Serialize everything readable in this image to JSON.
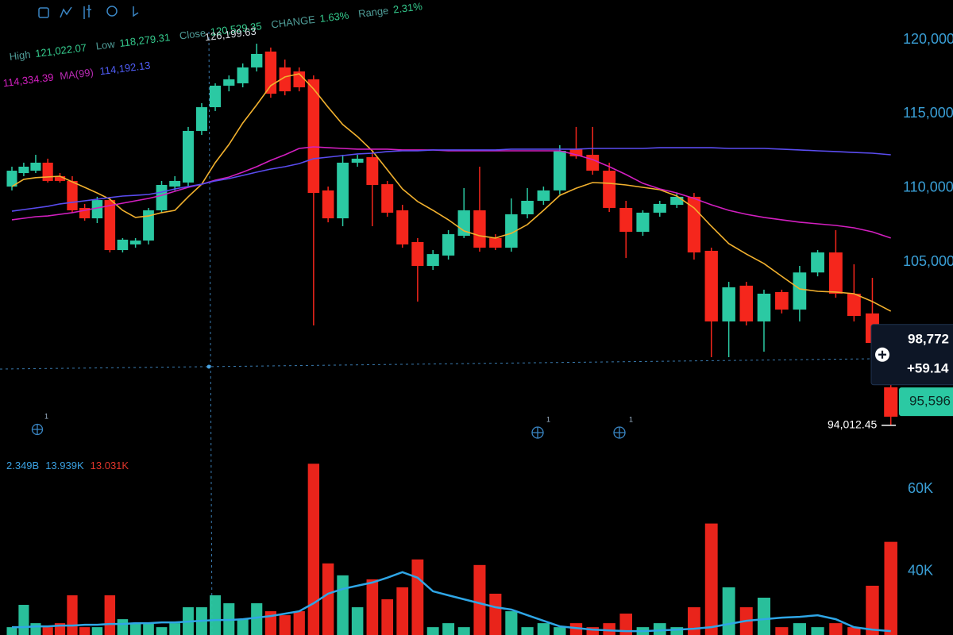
{
  "chart_data": {
    "type": "candlestick",
    "ohlc_legend": [
      {
        "label": "High",
        "value": "121,022.07"
      },
      {
        "label": "Low",
        "value": "118,279.31"
      },
      {
        "label": "Close",
        "value": "120,529.35"
      },
      {
        "label": "CHANGE",
        "value": "1.63%"
      },
      {
        "label": "Range",
        "value": "2.31%"
      }
    ],
    "ma_legend": [
      "114,334.39",
      "MA(99)",
      "114,192.13"
    ],
    "volume_legend": [
      "2.349B",
      "13.939K",
      "13.031K"
    ],
    "high_label": "126,199.63",
    "last_price": {
      "value": 98772,
      "label": "98,772"
    },
    "change_label": "+59.14",
    "mark_price": {
      "value": 95596,
      "label": "95,596"
    },
    "low_price": {
      "value": 94012.45,
      "label": "94,012.45"
    },
    "events": [
      1,
      1,
      1
    ],
    "up_color": "#2bc9a3",
    "down_color": "#f5261c",
    "ylim": [
      92715,
      122675
    ],
    "yticks": [
      {
        "value": 120000,
        "label": "120,000"
      },
      {
        "value": 115000,
        "label": "115,000"
      },
      {
        "value": 110000,
        "label": "110,000"
      },
      {
        "value": 105000,
        "label": "105,000"
      }
    ],
    "grid": false,
    "candles": {
      "open": [
        110100,
        111010,
        111170,
        111710,
        110800,
        110480,
        108660,
        107960,
        109190,
        105820,
        106200,
        106460,
        108500,
        110100,
        110370,
        113850,
        115450,
        116900,
        117060,
        118130,
        119200,
        118130,
        117860,
        117330,
        109840,
        107960,
        111710,
        112080,
        110260,
        108500,
        106360,
        104750,
        105450,
        106780,
        108500,
        106630,
        105980,
        108230,
        109140,
        109840,
        112620,
        112240,
        111170,
        108660,
        107050,
        108340,
        108870,
        109410,
        105770,
        101010,
        103420,
        101010,
        102990,
        101810,
        104310,
        105660,
        102880,
        101550,
        96570
      ],
      "high": [
        111440,
        111710,
        112240,
        111980,
        111010,
        110800,
        108930,
        109410,
        109410,
        106630,
        106630,
        108660,
        110480,
        110800,
        114120,
        115720,
        117060,
        117590,
        118400,
        119730,
        119470,
        118660,
        118130,
        117590,
        110100,
        112240,
        112240,
        112510,
        110480,
        108870,
        106630,
        105820,
        107160,
        110000,
        111440,
        106890,
        109300,
        110000,
        110100,
        112890,
        114120,
        114120,
        111710,
        109140,
        108500,
        109140,
        109670,
        109670,
        105980,
        103680,
        103680,
        103150,
        103150,
        104750,
        105820,
        107160,
        104860,
        103950,
        96840
      ],
      "low": [
        109840,
        110800,
        111010,
        110370,
        110370,
        108340,
        107800,
        107640,
        105660,
        105660,
        105980,
        106200,
        108340,
        109840,
        110100,
        113580,
        115190,
        116520,
        116790,
        117860,
        116090,
        116250,
        116520,
        100740,
        107690,
        107430,
        111440,
        107430,
        108070,
        105980,
        102350,
        104480,
        105180,
        106630,
        105710,
        105820,
        105710,
        107960,
        108870,
        109570,
        111980,
        110900,
        108390,
        105290,
        106780,
        108070,
        108660,
        105180,
        98600,
        98600,
        100740,
        98970,
        101550,
        101010,
        104050,
        102610,
        101010,
        99140,
        94010
      ],
      "close": [
        111170,
        111440,
        111710,
        110480,
        110480,
        108500,
        107960,
        109190,
        105820,
        106520,
        106460,
        108500,
        110210,
        110480,
        113850,
        115450,
        116900,
        117330,
        118130,
        119040,
        116360,
        116520,
        116790,
        109670,
        107960,
        111710,
        111980,
        110210,
        108340,
        106200,
        104750,
        105550,
        106890,
        108500,
        105980,
        105980,
        108230,
        109140,
        109840,
        112510,
        112140,
        111170,
        108660,
        107050,
        108340,
        108930,
        109410,
        105660,
        101010,
        103310,
        101010,
        102880,
        101810,
        104310,
        105660,
        102880,
        101380,
        99560,
        94590
      ]
    },
    "lines": [
      {
        "color": "#f2b12e",
        "values": [
          110100,
          110590,
          110700,
          110750,
          110800,
          110420,
          110050,
          109670,
          109250,
          108500,
          108020,
          108120,
          108340,
          108500,
          109410,
          110260,
          111710,
          112940,
          114380,
          115610,
          116900,
          117490,
          117700,
          116680,
          115450,
          114280,
          113470,
          112510,
          111230,
          109940,
          109090,
          108500,
          107860,
          107110,
          106780,
          106630,
          106950,
          107540,
          108500,
          109510,
          109990,
          110370,
          110320,
          110210,
          110050,
          109890,
          109460,
          108660,
          107430,
          106250,
          105550,
          104910,
          104050,
          103200,
          103040,
          102990,
          102880,
          102350,
          101700
        ]
      },
      {
        "color": "#d31fc0",
        "values": [
          107860,
          107960,
          108070,
          108120,
          108230,
          108340,
          108500,
          108660,
          108820,
          108980,
          109140,
          109300,
          109510,
          109780,
          110050,
          110260,
          110530,
          110740,
          111070,
          111440,
          111870,
          112240,
          112670,
          112780,
          112720,
          112670,
          112620,
          112620,
          112620,
          112570,
          112570,
          112570,
          112510,
          112510,
          112510,
          112510,
          112510,
          112510,
          112510,
          112510,
          112240,
          111920,
          111440,
          110910,
          110320,
          109940,
          109670,
          109300,
          108870,
          108500,
          108230,
          108020,
          107860,
          107700,
          107590,
          107480,
          107320,
          107050,
          106630
        ]
      },
      {
        "color": "#5a4cf0",
        "values": [
          108440,
          108550,
          108660,
          108770,
          108930,
          109040,
          109140,
          109250,
          109360,
          109460,
          109510,
          109570,
          109730,
          109940,
          110100,
          110260,
          110480,
          110640,
          110850,
          111070,
          111280,
          111440,
          111650,
          111980,
          112080,
          112190,
          112300,
          112350,
          112460,
          112510,
          112510,
          112570,
          112570,
          112570,
          112570,
          112570,
          112620,
          112620,
          112620,
          112620,
          112620,
          112670,
          112670,
          112670,
          112670,
          112720,
          112720,
          112720,
          112720,
          112670,
          112670,
          112670,
          112620,
          112570,
          112510,
          112460,
          112400,
          112350,
          112240
        ]
      }
    ],
    "volume": {
      "ylim": [
        24500,
        68000
      ],
      "yticks": [
        {
          "value": 60000,
          "label": "60K"
        },
        {
          "value": 40000,
          "label": "40K"
        }
      ],
      "values": [
        26410,
        31840,
        27380,
        26410,
        27380,
        34170,
        26410,
        26410,
        34170,
        28350,
        27380,
        27380,
        26410,
        27380,
        31260,
        31260,
        34170,
        32230,
        28350,
        32230,
        30290,
        29320,
        30290,
        66220,
        41940,
        39030,
        31260,
        38060,
        33200,
        36120,
        42910,
        26410,
        27380,
        26410,
        41550,
        34560,
        30290,
        26410,
        27380,
        26410,
        27380,
        26410,
        27380,
        29710,
        26410,
        27380,
        26410,
        31260,
        51650,
        36120,
        31260,
        33590,
        26410,
        27380,
        26410,
        27380,
        26410,
        36500,
        47190
      ],
      "ma_color": "#2fa6e6",
      "ma_values": [
        26410,
        26410,
        26600,
        26600,
        26800,
        26800,
        26990,
        26990,
        27180,
        27180,
        27380,
        27380,
        27570,
        27570,
        27770,
        27960,
        28150,
        28150,
        28350,
        28740,
        29130,
        29710,
        30290,
        32230,
        34560,
        35730,
        36500,
        37280,
        38450,
        39810,
        38450,
        35150,
        34170,
        33200,
        32230,
        31260,
        30680,
        29320,
        27960,
        26600,
        26210,
        25820,
        25630,
        25440,
        25440,
        25630,
        25820,
        26020,
        26410,
        27180,
        27960,
        28350,
        28740,
        28930,
        29320,
        28350,
        26410,
        25820,
        25440
      ]
    }
  }
}
